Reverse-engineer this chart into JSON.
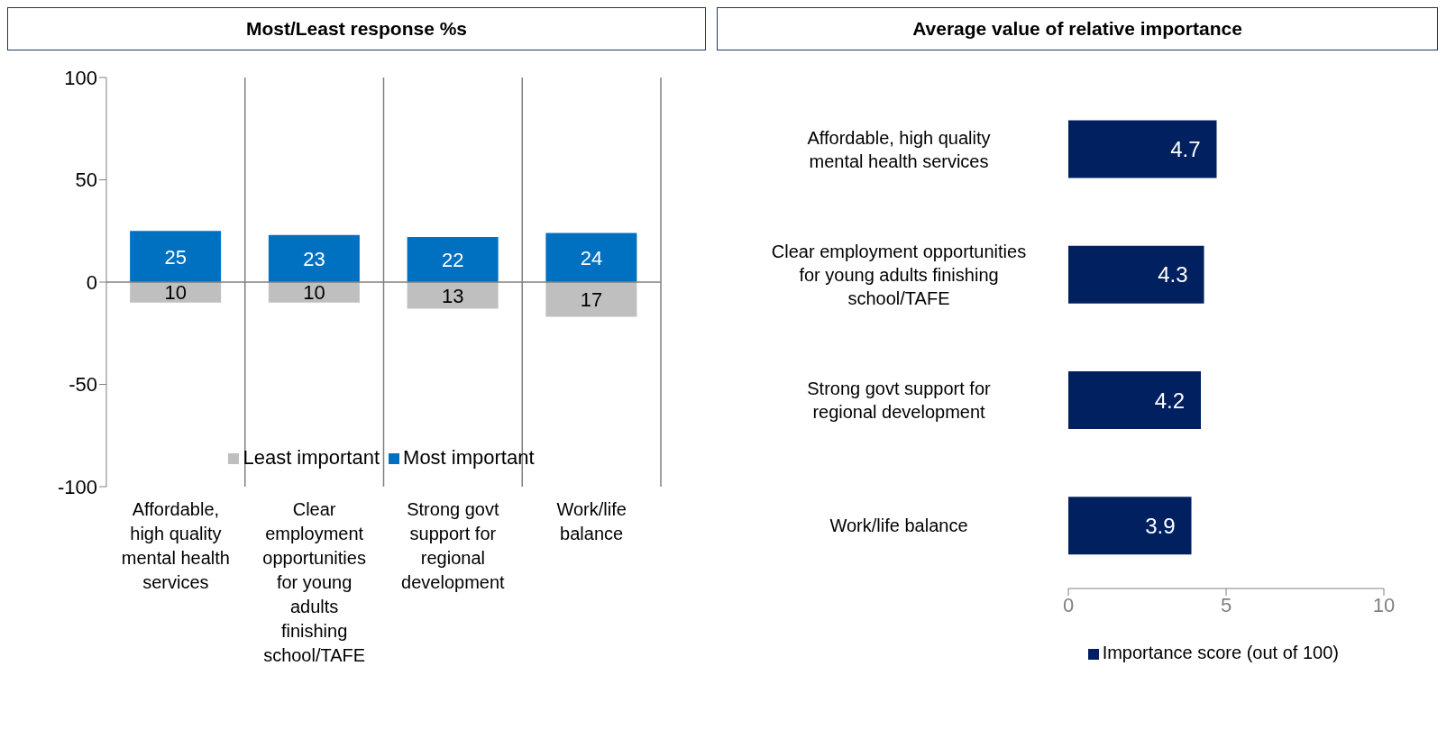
{
  "chart_data": [
    {
      "type": "bar",
      "title": "Most/Least response %s",
      "categories": [
        "Affordable, high quality mental health services",
        "Clear employment opportunities for young adults finishing school/TAFE",
        "Strong govt support for regional development",
        "Work/life balance"
      ],
      "series": [
        {
          "name": "Least important",
          "color": "#bfbfbf",
          "base": [
            -10,
            -10,
            -13,
            -17
          ],
          "values": [
            10,
            10,
            13,
            17
          ]
        },
        {
          "name": "Most important",
          "color": "#0070c0",
          "values": [
            25,
            23,
            22,
            24
          ]
        }
      ],
      "data_labels": true,
      "ref_lines": [
        {
          "axis": "y",
          "value": 0,
          "color": "#808080"
        }
      ],
      "ylim": [
        -100,
        100
      ],
      "yticks": [
        -100,
        -50,
        0,
        50,
        100
      ],
      "grid": "x",
      "legend": "bottom"
    },
    {
      "type": "bar",
      "orientation": "horizontal",
      "title": "Average value of relative importance",
      "categories": [
        "Affordable, high quality mental health services",
        "Clear employment opportunities for young adults finishing school/TAFE",
        "Strong govt support for regional development",
        "Work/life balance"
      ],
      "series": [
        {
          "name": "Importance score (out of 100)",
          "color": "#002060",
          "values": [
            4.7,
            4.3,
            4.2,
            3.9
          ]
        }
      ],
      "xlim": [
        0,
        10
      ],
      "xticks": [
        0,
        5,
        10
      ],
      "data_labels": true,
      "legend": "bottom"
    }
  ]
}
